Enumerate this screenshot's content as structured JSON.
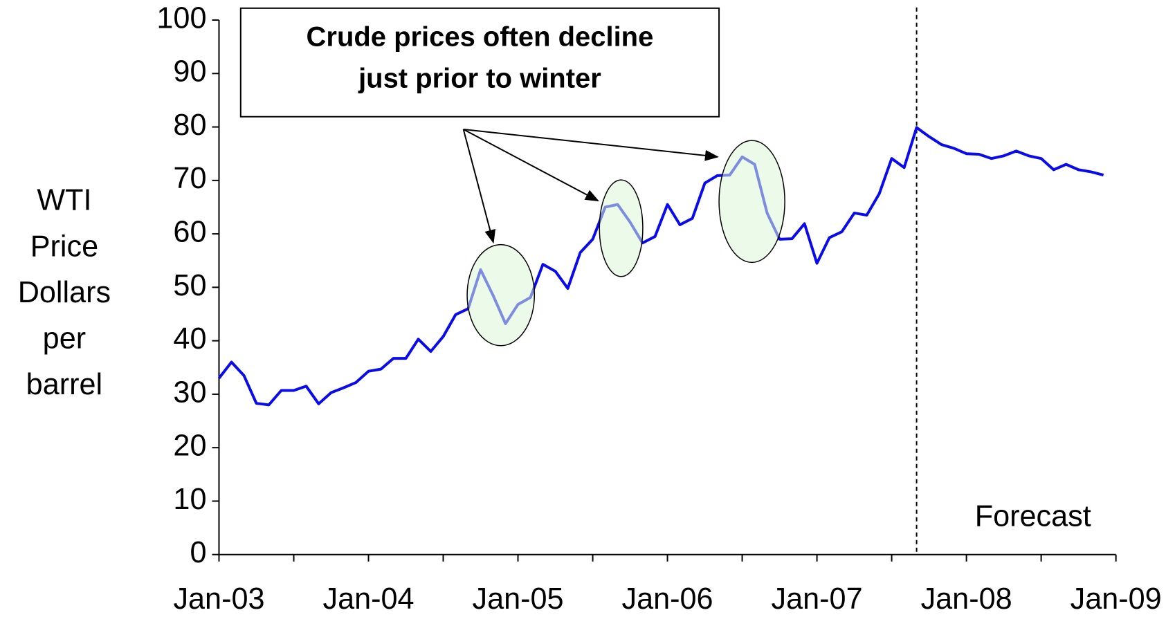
{
  "chart_data": {
    "type": "line",
    "ylabel": [
      "WTI",
      "Price",
      "Dollars",
      "per",
      "barrel"
    ],
    "annotations": [
      "Crude prices often  decline",
      "just  prior to winter",
      "Forecast"
    ],
    "categories": [
      "Jan-03",
      null,
      null,
      null,
      null,
      null,
      null,
      null,
      null,
      null,
      null,
      null,
      "Jan-04",
      null,
      null,
      null,
      null,
      null,
      null,
      null,
      null,
      null,
      null,
      null,
      "Jan-05",
      null,
      null,
      null,
      null,
      null,
      null,
      null,
      null,
      null,
      null,
      null,
      "Jan-06",
      null,
      null,
      null,
      null,
      null,
      null,
      null,
      null,
      null,
      null,
      null,
      "Jan-07",
      null,
      null,
      null,
      null,
      null,
      null,
      null,
      null,
      null,
      null,
      null,
      "Jan-08",
      null,
      null,
      null,
      null,
      null,
      null,
      null,
      null,
      null,
      null,
      null,
      "Jan-09"
    ],
    "series": [
      {
        "name": "WTI",
        "color": "#0a0aee",
        "values": [
          33,
          36,
          33.5,
          28.3,
          28,
          30.7,
          30.7,
          31.5,
          28.2,
          30.3,
          31.2,
          32.2,
          34.3,
          34.7,
          36.7,
          36.7,
          40.3,
          38,
          40.8,
          44.9,
          46,
          53.3,
          48.5,
          43.2,
          46.8,
          48.1,
          54.3,
          53,
          49.8,
          56.5,
          59,
          65,
          65.5,
          62.2,
          58.3,
          59.5,
          65.5,
          61.7,
          62.9,
          69.5,
          70.9,
          71,
          74.4,
          73,
          63.9,
          59,
          59.1,
          61.9,
          54.5,
          59.3,
          60.4,
          63.9,
          63.5,
          67.5,
          74.1,
          72.4,
          79.9,
          78.2,
          76.7,
          76,
          75,
          74.9,
          74.1,
          74.6,
          75.5,
          74.6,
          74.1,
          72,
          73,
          72,
          71.6,
          71,
          null
        ]
      }
    ],
    "ylim": [
      0,
      100
    ],
    "yticks": [
      0,
      10,
      20,
      30,
      40,
      50,
      60,
      70,
      80,
      90,
      100
    ]
  }
}
